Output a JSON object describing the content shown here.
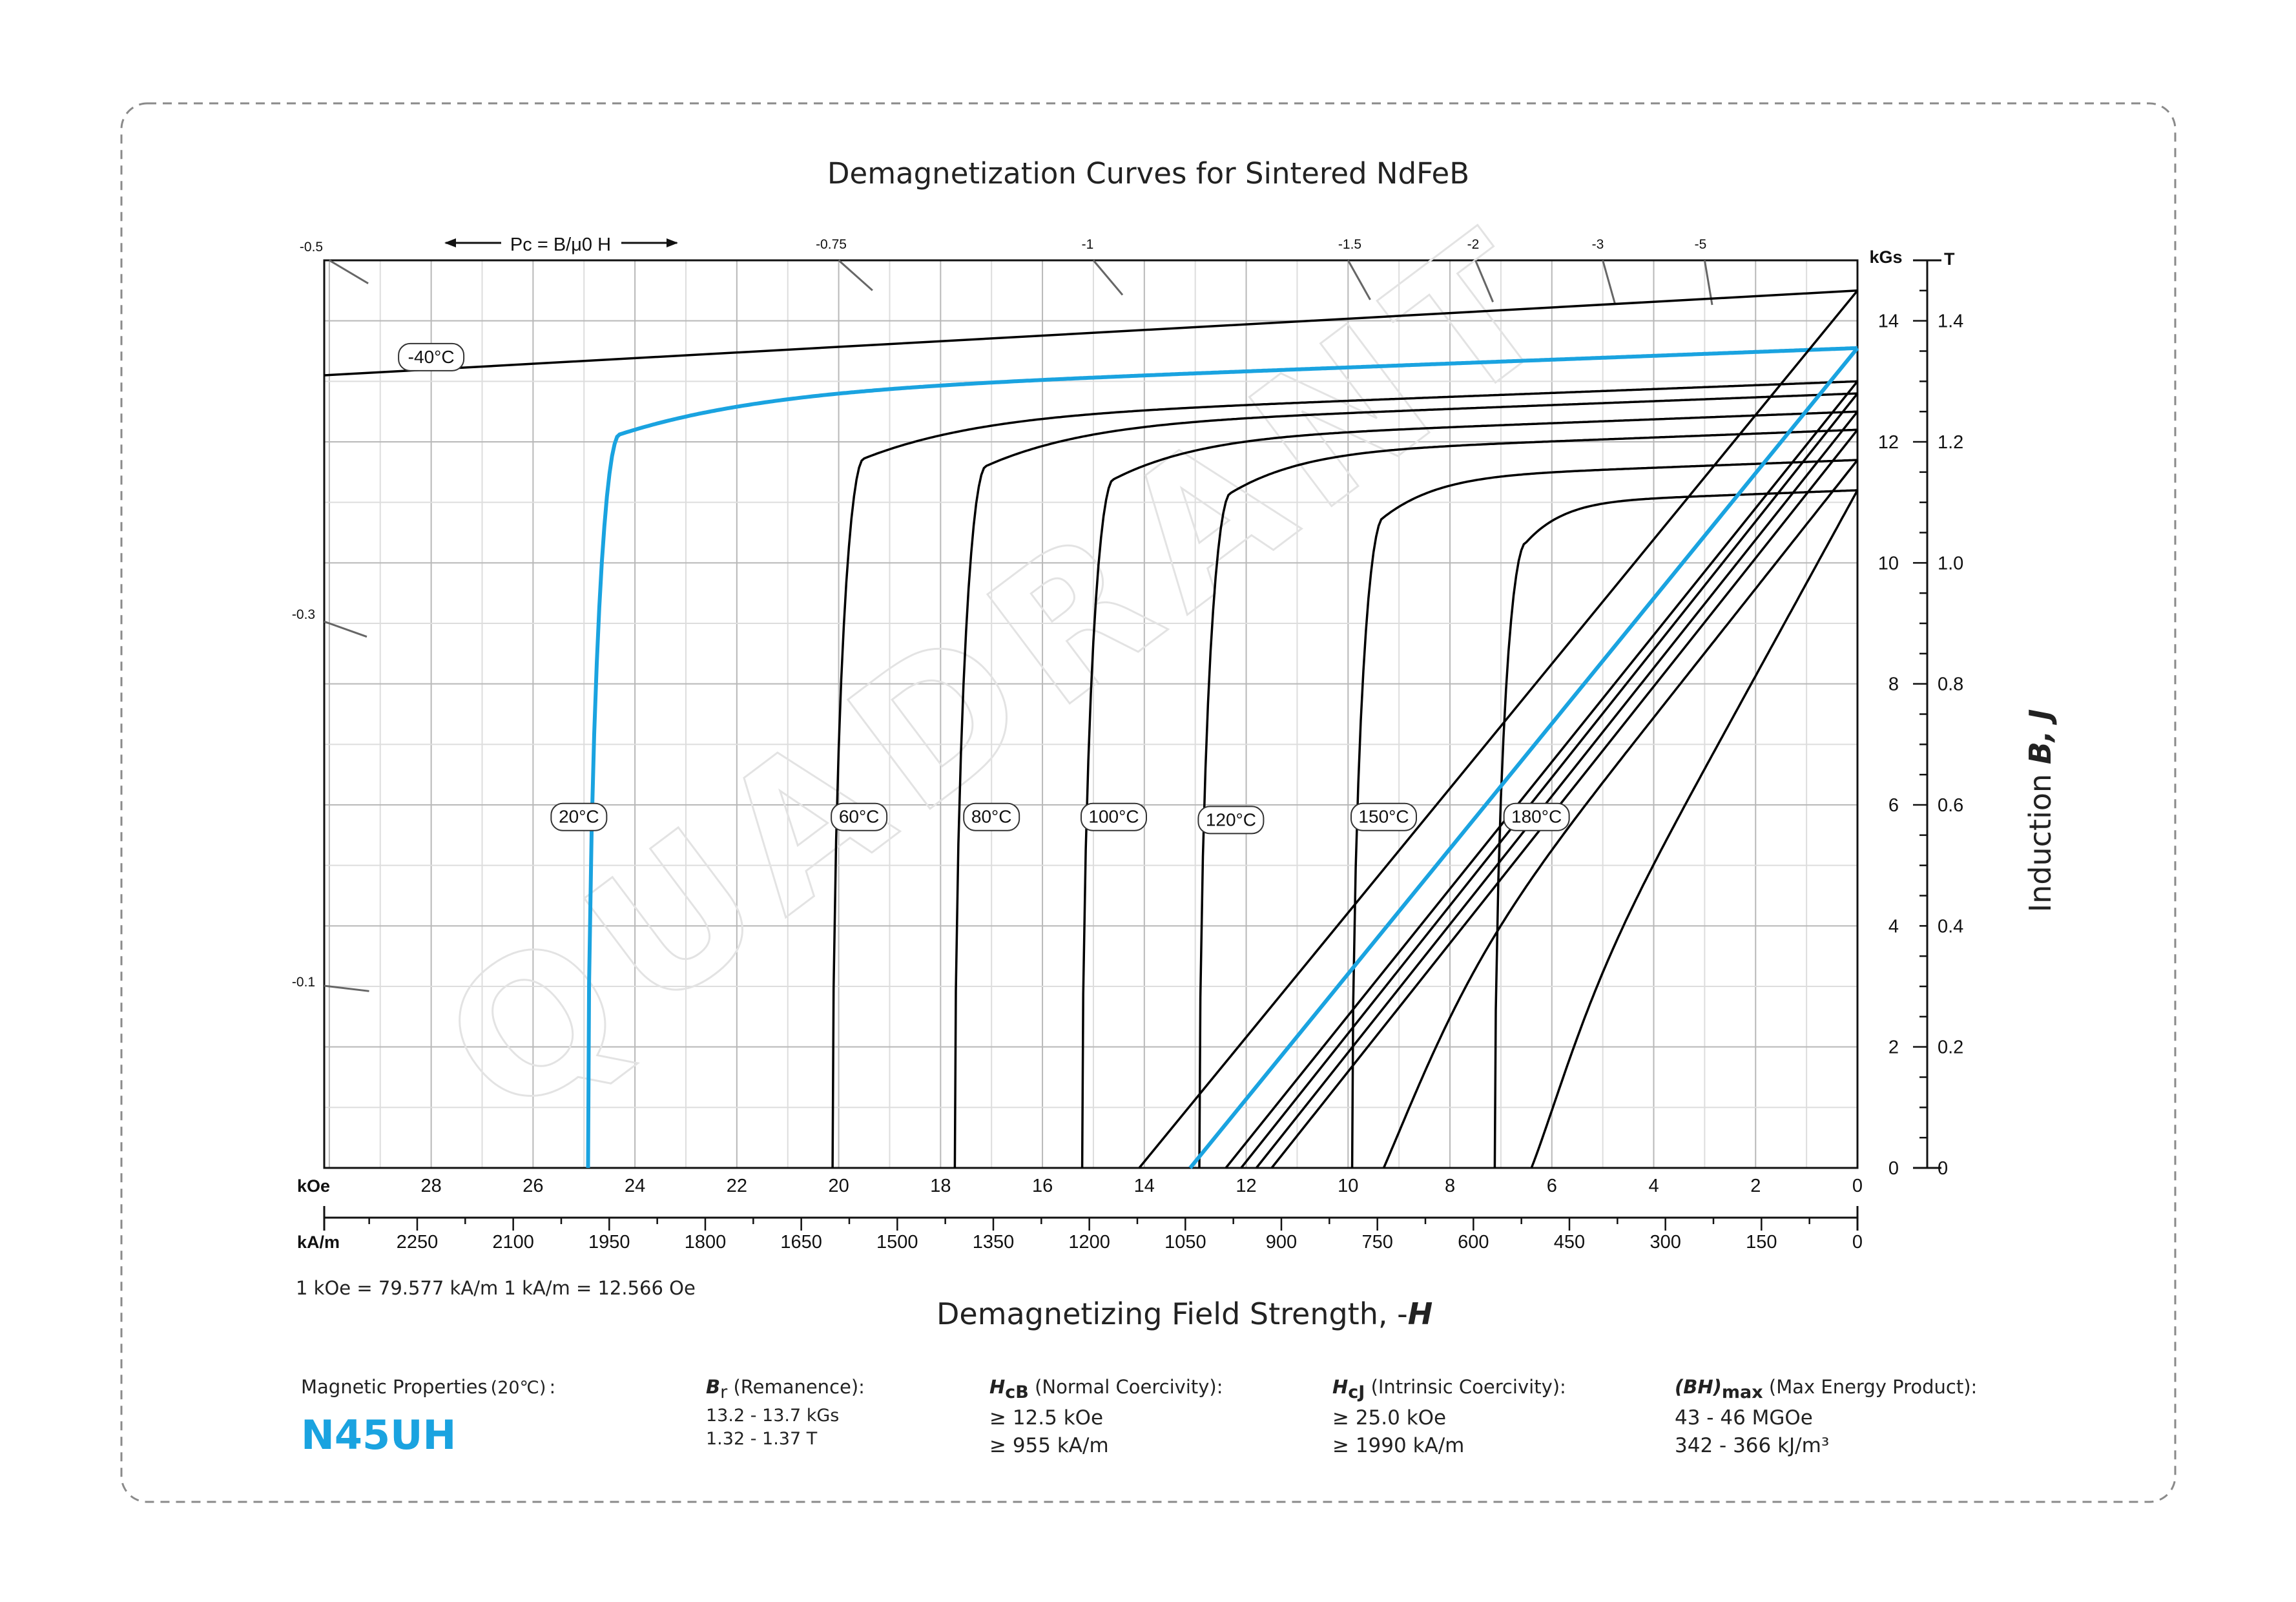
{
  "chart_data": {
    "type": "line",
    "title": "Demagnetization Curves for Sintered NdFeB",
    "xlabel": "Demagnetizing Field Strength, -H",
    "ylabel": "Induction B, J",
    "x_unit_primary": "kOe",
    "x_unit_secondary": "kA/m",
    "y_unit_primary": "kGs",
    "y_unit_secondary": "T",
    "xlim": [
      30.1,
      0
    ],
    "ylim": [
      0,
      15
    ],
    "koe_ticks": [
      "28",
      "26",
      "24",
      "22",
      "20",
      "18",
      "16",
      "14",
      "12",
      "10",
      "8",
      "6",
      "4",
      "2",
      "0"
    ],
    "kam_ticks": [
      "2250",
      "2100",
      "1950",
      "1800",
      "1650",
      "1500",
      "1350",
      "1200",
      "1050",
      "900",
      "750",
      "600",
      "450",
      "300",
      "150",
      "0"
    ],
    "kgs_ticks": [
      "0",
      "2",
      "4",
      "6",
      "8",
      "10",
      "12",
      "14"
    ],
    "tesla_ticks": [
      "0",
      "0.2",
      "0.4",
      "0.6",
      "0.8",
      "1.0",
      "1.2",
      "1.4"
    ],
    "conversion_note": "1 kOe = 79.577 kA/m   1 kA/m = 12.566 Oe",
    "pc_label": "Pc = B/μ0 H",
    "pc_ticks": [
      {
        "label": "-0.5",
        "slope": 0.5
      },
      {
        "label": "-0.75",
        "slope": 0.75
      },
      {
        "label": "-1",
        "slope": 1
      },
      {
        "label": "-1.5",
        "slope": 1.5
      },
      {
        "label": "-2",
        "slope": 2
      },
      {
        "label": "-3",
        "slope": 3
      },
      {
        "label": "-5",
        "slope": 5
      },
      {
        "label": "-0.3",
        "slope": 0.3
      },
      {
        "label": "-0.1",
        "slope": 0.1
      }
    ],
    "watermark": "QUADRANT",
    "grid": true,
    "series": [
      {
        "name": "-40°C",
        "kind": "intrinsic",
        "color": "#000000",
        "Br": 14.5,
        "Hk": null,
        "Hcj": null,
        "label_at": [
          28,
          13.4
        ]
      },
      {
        "name": "20°C",
        "kind": "intrinsic",
        "color": "#1aa3e0",
        "Br": 13.55,
        "Hk": 24.3,
        "Hcj": 25.2,
        "label_at": [
          25.1,
          5.8
        ]
      },
      {
        "name": "60°C",
        "kind": "intrinsic",
        "color": "#000000",
        "Br": 13.0,
        "Hk": 19.5,
        "Hcj": 19.6,
        "label_at": [
          19.6,
          5.8
        ]
      },
      {
        "name": "80°C",
        "kind": "intrinsic",
        "color": "#000000",
        "Br": 12.8,
        "Hk": 17.1,
        "Hcj": 17.0,
        "label_at": [
          17.0,
          5.8
        ]
      },
      {
        "name": "100°C",
        "kind": "intrinsic",
        "color": "#000000",
        "Br": 12.5,
        "Hk": 14.6,
        "Hcj": 14.6,
        "label_at": [
          14.6,
          5.8
        ]
      },
      {
        "name": "120°C",
        "kind": "intrinsic",
        "color": "#000000",
        "Br": 12.2,
        "Hk": 12.3,
        "Hcj": 12.3,
        "label_at": [
          12.3,
          5.75
        ]
      },
      {
        "name": "150°C",
        "kind": "intrinsic",
        "color": "#000000",
        "Br": 11.7,
        "Hk": 9.3,
        "Hcj": 9.3,
        "label_at": [
          9.3,
          5.8
        ]
      },
      {
        "name": "180°C",
        "kind": "intrinsic",
        "color": "#000000",
        "Br": 11.2,
        "Hk": 6.5,
        "Hcj": 6.3,
        "label_at": [
          6.3,
          5.8
        ]
      },
      {
        "name": "",
        "kind": "normal",
        "color": "#000000",
        "Br": 14.5,
        "Hc": 14.1
      },
      {
        "name": "",
        "kind": "normal",
        "color": "#1aa3e0",
        "Br": 13.55,
        "Hc": 13.1
      },
      {
        "name": "",
        "kind": "normal",
        "color": "#000000",
        "Br": 13.0,
        "Hc": 12.4
      },
      {
        "name": "",
        "kind": "normal",
        "color": "#000000",
        "Br": 12.8,
        "Hc": 12.1
      },
      {
        "name": "",
        "kind": "normal",
        "color": "#000000",
        "Br": 12.5,
        "Hc": 11.8
      },
      {
        "name": "",
        "kind": "normal",
        "color": "#000000",
        "Br": 12.2,
        "Hc": 11.5
      },
      {
        "name": "",
        "kind": "normal",
        "color": "#000000",
        "Br": 11.7,
        "Hc": 10.9,
        "knee": 9.3
      },
      {
        "name": "",
        "kind": "normal",
        "color": "#000000",
        "Br": 11.2,
        "Hc": 6.3,
        "knee": 6.4
      }
    ]
  },
  "properties": {
    "heading": "Magnetic Properties",
    "heading_temp": "(20℃)",
    "heading_colon": ":",
    "grade": "N45UH",
    "br": {
      "symbol": "B",
      "sub": "r",
      "name": "(Remanence):",
      "values": [
        "13.2 - 13.7 kGs",
        "1.32 - 1.37 T"
      ]
    },
    "hcb": {
      "symbol": "H",
      "sub": "cB",
      "name": "(Normal Coercivity):",
      "values": [
        "≥ 12.5 kOe",
        "≥ 955 kA/m"
      ]
    },
    "hcj": {
      "symbol": "H",
      "sub": "cJ",
      "name": "(Intrinsic Coercivity):",
      "values": [
        "≥ 25.0 kOe",
        "≥ 1990 kA/m"
      ]
    },
    "bhmax": {
      "symbol": "(BH)",
      "sub": "max",
      "name": "(Max Energy Product):",
      "values": [
        "43 - 46 MGOe",
        "342 - 366 kJ/m³"
      ]
    }
  },
  "colors": {
    "accent": "#1aa3e0",
    "grid": "#bdbdbd",
    "frame": "#777777"
  }
}
